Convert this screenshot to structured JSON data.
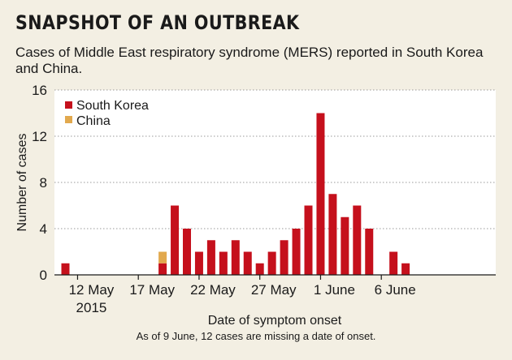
{
  "title": "SNAPSHOT OF AN OUTBREAK",
  "subtitle": "Cases of Middle East respiratory syndrome (MERS) reported in South Korea and China.",
  "note": "As of 9 June, 12 cases are missing a date of onset.",
  "colors": {
    "south_korea": "#c5101c",
    "china": "#e2a94e",
    "plot_background": "#ffffff",
    "page_background": "#f3efe3"
  },
  "chart_data": {
    "type": "bar",
    "stacked": true,
    "xlabel": "Date of symptom onset",
    "ylabel": "Number of cases",
    "ylim": [
      0,
      16
    ],
    "yticks": [
      0,
      4,
      8,
      12,
      16
    ],
    "grid": "horizontal dotted",
    "legend_position": "top-left",
    "categories": [
      "11 May",
      "12 May",
      "13 May",
      "14 May",
      "15 May",
      "16 May",
      "17 May",
      "18 May",
      "19 May",
      "20 May",
      "21 May",
      "22 May",
      "23 May",
      "24 May",
      "25 May",
      "26 May",
      "27 May",
      "28 May",
      "29 May",
      "30 May",
      "31 May",
      "1 June",
      "2 June",
      "3 June",
      "4 June",
      "5 June",
      "6 June",
      "7 June",
      "8 June"
    ],
    "xtick_labels": [
      {
        "category": "12 May",
        "line1": "12 May",
        "line2": "2015"
      },
      {
        "category": "17 May",
        "line1": "17 May",
        "line2": ""
      },
      {
        "category": "22 May",
        "line1": "22 May",
        "line2": ""
      },
      {
        "category": "27 May",
        "line1": "27 May",
        "line2": ""
      },
      {
        "category": "1 June",
        "line1": "1 June",
        "line2": ""
      },
      {
        "category": "6 June",
        "line1": "6 June",
        "line2": ""
      }
    ],
    "series": [
      {
        "name": "South Korea",
        "color": "#c5101c",
        "values": [
          1,
          0,
          0,
          0,
          0,
          0,
          0,
          0,
          1,
          6,
          4,
          2,
          3,
          2,
          3,
          2,
          1,
          2,
          3,
          4,
          6,
          14,
          7,
          5,
          6,
          4,
          0,
          2,
          1
        ]
      },
      {
        "name": "China",
        "color": "#e2a94e",
        "values": [
          0,
          0,
          0,
          0,
          0,
          0,
          0,
          0,
          1,
          0,
          0,
          0,
          0,
          0,
          0,
          0,
          0,
          0,
          0,
          0,
          0,
          0,
          0,
          0,
          0,
          0,
          0,
          0,
          0
        ]
      }
    ]
  }
}
